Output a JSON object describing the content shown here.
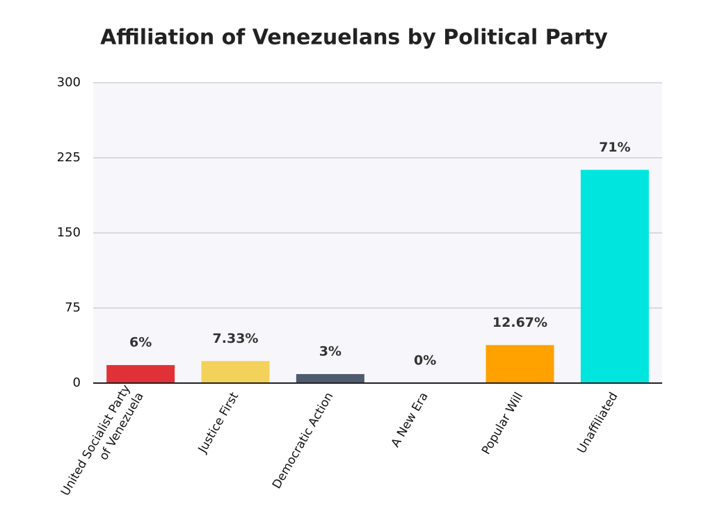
{
  "chart_data": {
    "type": "bar",
    "title": "Affiliation of Venezuelans by Political Party",
    "categories": [
      [
        "United Socialist Party",
        "of Venezuela"
      ],
      "Justice First",
      "Democratic Action",
      "A New Era",
      "Popular Will",
      "Unaffiliated"
    ],
    "values": [
      18,
      22,
      9,
      0,
      38,
      213
    ],
    "value_labels": [
      "6%",
      "7.33%",
      "3%",
      "0%",
      "12.67%",
      "71%"
    ],
    "colors": [
      "#e03236",
      "#f2d25a",
      "#4f5b6e",
      "#888888",
      "#ffa200",
      "#00e5de"
    ],
    "ylim": [
      0,
      300
    ],
    "yticks": [
      0,
      75,
      150,
      225,
      300
    ],
    "grid": true
  }
}
